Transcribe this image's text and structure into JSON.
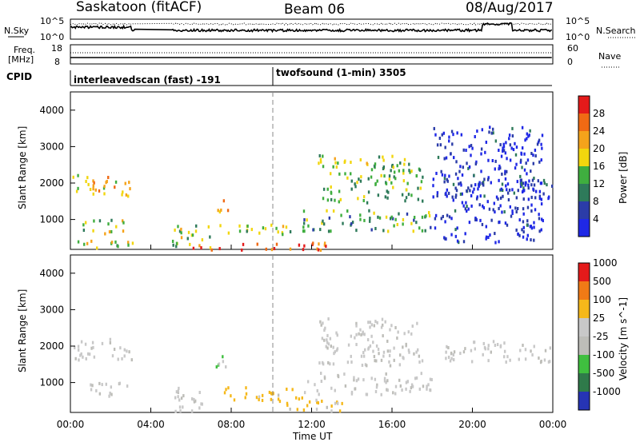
{
  "header": {
    "station": "Saskatoon (fitACF)",
    "beam": "Beam 06",
    "date": "08/Aug/2017"
  },
  "noise_panel": {
    "left_label": "N.Sky",
    "right_label": "N.Search",
    "ticks_left": [
      "10^5",
      "10^0"
    ],
    "ticks_right": [
      "10^5",
      "10^0"
    ]
  },
  "freq_panel": {
    "left_label_1": "Freq.",
    "left_label_2": "[MHz]",
    "left_ticks": [
      "18",
      "8"
    ],
    "right_label": "Nave",
    "right_ticks": [
      "60",
      "0"
    ]
  },
  "cpid": {
    "label": "CPID",
    "segments": [
      {
        "name": "interleavedscan (fast) -191",
        "start_hour": 0.0
      },
      {
        "name": "twofsound (1-min) 3505",
        "start_hour": 9.75
      }
    ]
  },
  "time_axis": {
    "label": "Time UT",
    "ticks": [
      "00:00",
      "04:00",
      "08:00",
      "12:00",
      "16:00",
      "20:00",
      "00:00"
    ],
    "range_hours": [
      0,
      24
    ]
  },
  "chart_data": [
    {
      "type": "heatmap",
      "name": "Power",
      "ylabel": "Slant Range [km]",
      "yticks": [
        "1000",
        "2000",
        "3000",
        "4000"
      ],
      "ylim": [
        180,
        4500
      ],
      "colorbar": {
        "label": "Power [dB]",
        "ticks": [
          "4",
          "8",
          "12",
          "16",
          "20",
          "24",
          "28"
        ],
        "colors": [
          "#1f28e6",
          "#2b3ca8",
          "#2e7a5a",
          "#3fae3f",
          "#f2d60e",
          "#f5a31b",
          "#f06a14",
          "#e41a1a"
        ]
      },
      "regions": [
        {
          "t0": 0.1,
          "t1": 3.1,
          "r0": 1650,
          "r1": 2250,
          "level": 0.6
        },
        {
          "t0": 0.6,
          "t1": 2.8,
          "r0": 650,
          "r1": 1050,
          "level": 0.5
        },
        {
          "t0": 0.0,
          "t1": 3.2,
          "r0": 200,
          "r1": 450,
          "level": 0.55
        },
        {
          "t0": 5.0,
          "t1": 7.0,
          "r0": 250,
          "r1": 900,
          "level": 0.45
        },
        {
          "t0": 7.2,
          "t1": 7.8,
          "r0": 1250,
          "r1": 1800,
          "level": 0.8
        },
        {
          "t0": 7.0,
          "t1": 11.0,
          "r0": 600,
          "r1": 900,
          "level": 0.45
        },
        {
          "t0": 5.5,
          "t1": 13.0,
          "r0": 200,
          "r1": 400,
          "level": 0.85
        },
        {
          "t0": 12.3,
          "t1": 17.5,
          "r0": 1500,
          "r1": 2800,
          "level": 0.45
        },
        {
          "t0": 11.5,
          "t1": 18.0,
          "r0": 700,
          "r1": 1300,
          "level": 0.4
        },
        {
          "t0": 18.5,
          "t1": 24.0,
          "r0": 1600,
          "r1": 2200,
          "level": 0.2
        },
        {
          "t0": 18.0,
          "t1": 23.5,
          "r0": 400,
          "r1": 3600,
          "level": 0.08
        }
      ]
    },
    {
      "type": "heatmap",
      "name": "Velocity",
      "ylabel": "Slant Range [km]",
      "yticks": [
        "1000",
        "2000",
        "3000",
        "4000"
      ],
      "ylim": [
        180,
        4500
      ],
      "colorbar": {
        "label": "Velocity [m s^-1]",
        "ticks": [
          "1000",
          "500",
          "100",
          "25",
          "-25",
          "-100",
          "-500",
          "-1000"
        ],
        "colors": [
          "#2634b5",
          "#2f7a4a",
          "#3fbf3f",
          "#bdbdb8",
          "#c8c8c8",
          "#f5b81a",
          "#f07a16",
          "#e41a1a"
        ]
      },
      "regions": [
        {
          "t0": 0.1,
          "t1": 3.1,
          "r0": 1650,
          "r1": 2250,
          "level": 0.5
        },
        {
          "t0": 0.6,
          "t1": 2.8,
          "r0": 650,
          "r1": 1050,
          "level": 0.5
        },
        {
          "t0": 5.0,
          "t1": 7.0,
          "r0": 250,
          "r1": 900,
          "level": 0.5
        },
        {
          "t0": 7.2,
          "t1": 7.8,
          "r0": 1250,
          "r1": 1900,
          "level": 0.25
        },
        {
          "t0": 7.5,
          "t1": 11.5,
          "r0": 550,
          "r1": 900,
          "level": 0.8
        },
        {
          "t0": 9.5,
          "t1": 13.5,
          "r0": 250,
          "r1": 600,
          "level": 0.75
        },
        {
          "t0": 12.3,
          "t1": 17.5,
          "r0": 1500,
          "r1": 2800,
          "level": 0.5
        },
        {
          "t0": 11.5,
          "t1": 18.0,
          "r0": 700,
          "r1": 1300,
          "level": 0.5
        },
        {
          "t0": 18.5,
          "t1": 24.0,
          "r0": 1600,
          "r1": 2200,
          "level": 0.5
        }
      ]
    }
  ]
}
